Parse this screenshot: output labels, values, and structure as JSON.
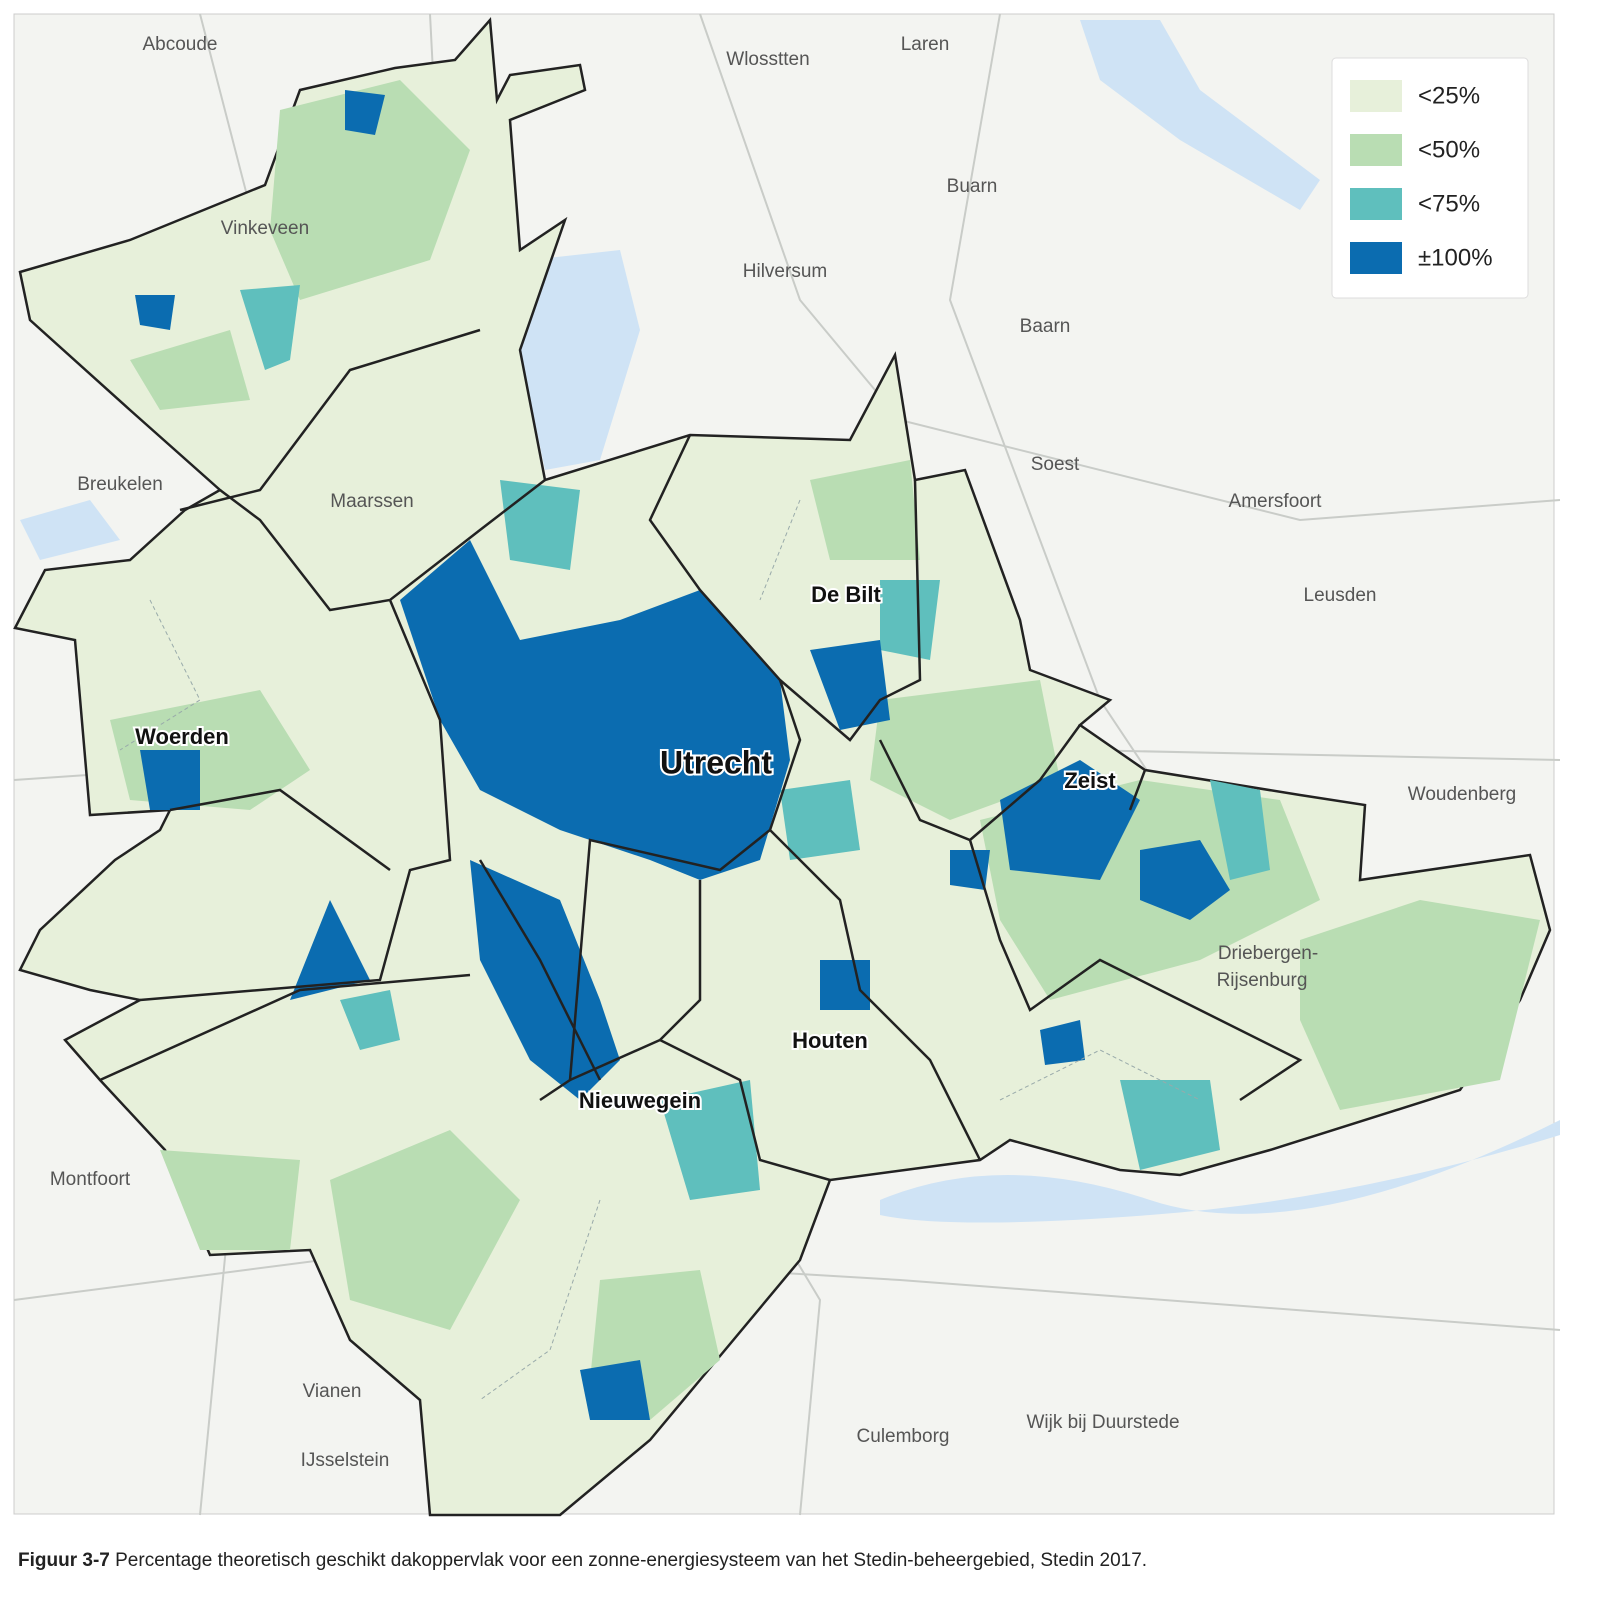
{
  "legend": {
    "items": [
      {
        "label": "<25%",
        "color": "#e7f0da"
      },
      {
        "label": "<50%",
        "color": "#b9ddb3"
      },
      {
        "label": "<75%",
        "color": "#5fbfbd"
      },
      {
        "label": "±100%",
        "color": "#0b6cb0"
      }
    ]
  },
  "places": {
    "background": [
      "Abcoude",
      "Wlosstten",
      "Laren",
      "Buarn",
      "Hilversum",
      "Baarn",
      "Soest",
      "Amersfoort",
      "Leusden",
      "Woudenberg",
      "Breukelen",
      "Maarssen",
      "Vinkeveen",
      "Montfoort",
      "Vianen",
      "IJsselstein",
      "Culemborg",
      "Wijk bij Duurstede",
      "Driebergen-",
      "Rijsenburg"
    ],
    "municipalities": [
      "Woerden",
      "De Bilt",
      "Utrecht",
      "Zeist",
      "Houten",
      "Nieuwegein"
    ]
  },
  "caption": {
    "label": "Figuur 3-7",
    "text": "Percentage theoretisch geschikt dakoppervlak voor een zonne-energiesysteem van het Stedin-beheergebied, Stedin 2017."
  }
}
